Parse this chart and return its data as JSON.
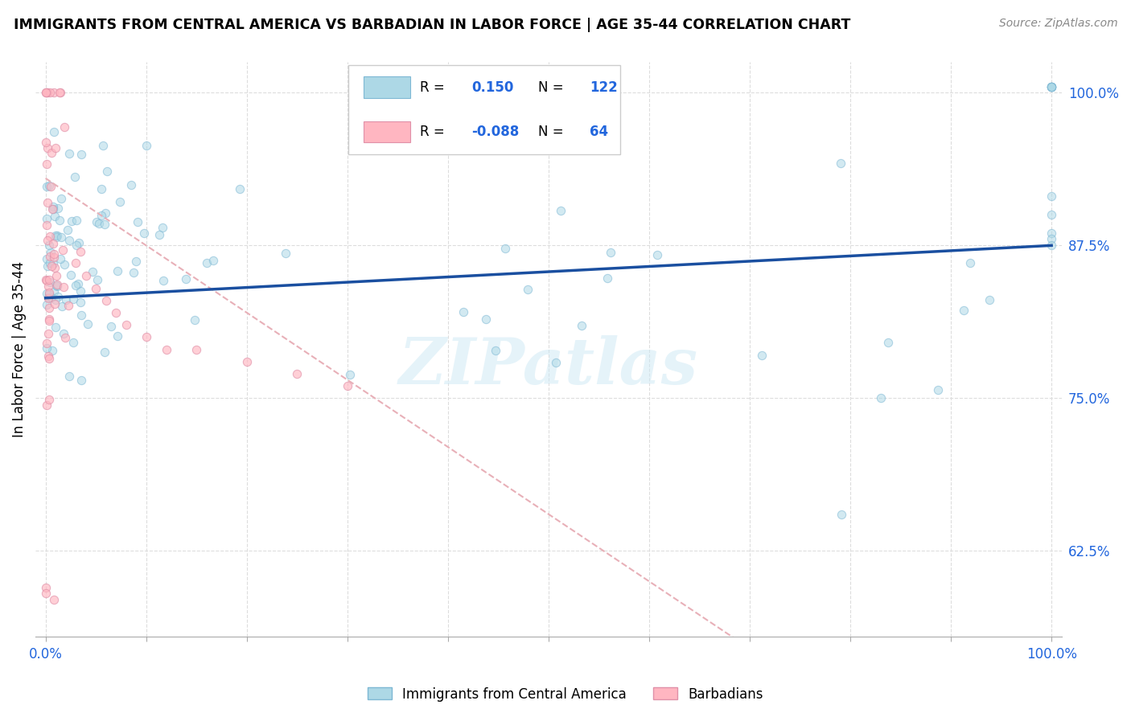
{
  "title": "IMMIGRANTS FROM CENTRAL AMERICA VS BARBADIAN IN LABOR FORCE | AGE 35-44 CORRELATION CHART",
  "source_text": "Source: ZipAtlas.com",
  "ylabel": "In Labor Force | Age 35-44",
  "r_blue": 0.15,
  "n_blue": 122,
  "r_pink": -0.088,
  "n_pink": 64,
  "x_min": 0.0,
  "x_max": 1.0,
  "y_min": 0.555,
  "y_max": 1.025,
  "yticks": [
    0.625,
    0.75,
    0.875,
    1.0
  ],
  "ytick_labels": [
    "62.5%",
    "75.0%",
    "87.5%",
    "100.0%"
  ],
  "xtick_labels": [
    "0.0%",
    "",
    "",
    "",
    "",
    "",
    "",
    "",
    "",
    "",
    "100.0%"
  ],
  "watermark": "ZIPatlas",
  "blue_line_y_start": 0.832,
  "blue_line_y_end": 0.875,
  "pink_line_x_start": 0.0,
  "pink_line_x_end": 1.0,
  "pink_line_y_start": 0.93,
  "pink_line_y_end": 0.38,
  "blue_color": "#ADD8E6",
  "blue_dot_edge": "#7EB8D4",
  "pink_color": "#FFB6C1",
  "pink_dot_edge": "#E090A8",
  "blue_line_color": "#1a4fa0",
  "pink_line_color": "#e8b0b8",
  "grid_color": "#dddddd",
  "axis_label_color": "#2266dd",
  "background_color": "#ffffff",
  "scatter_size": 55,
  "blue_alpha": 0.55,
  "pink_alpha": 0.65
}
